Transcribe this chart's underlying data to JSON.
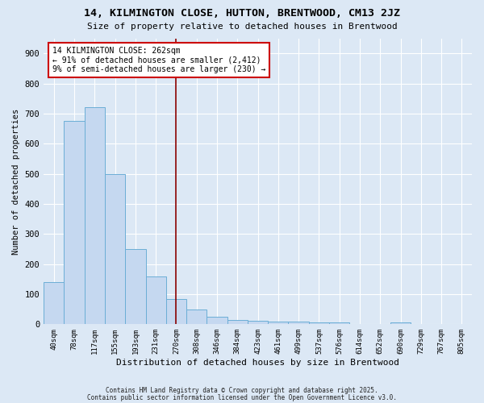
{
  "title": "14, KILMINGTON CLOSE, HUTTON, BRENTWOOD, CM13 2JZ",
  "subtitle": "Size of property relative to detached houses in Brentwood",
  "xlabel": "Distribution of detached houses by size in Brentwood",
  "ylabel": "Number of detached properties",
  "bar_color": "#c5d8f0",
  "bar_edge_color": "#6baed6",
  "background_color": "#dce8f5",
  "grid_color": "#ffffff",
  "bins": [
    "40sqm",
    "78sqm",
    "117sqm",
    "155sqm",
    "193sqm",
    "231sqm",
    "270sqm",
    "308sqm",
    "346sqm",
    "384sqm",
    "423sqm",
    "461sqm",
    "499sqm",
    "537sqm",
    "576sqm",
    "614sqm",
    "652sqm",
    "690sqm",
    "729sqm",
    "767sqm",
    "805sqm"
  ],
  "values": [
    140,
    675,
    720,
    500,
    250,
    160,
    85,
    50,
    25,
    15,
    12,
    8,
    10,
    5,
    5,
    2,
    2,
    5,
    1,
    1,
    1
  ],
  "ylim": [
    0,
    950
  ],
  "yticks": [
    0,
    100,
    200,
    300,
    400,
    500,
    600,
    700,
    800,
    900
  ],
  "red_line_index": 6,
  "annotation_text": "14 KILMINGTON CLOSE: 262sqm\n← 91% of detached houses are smaller (2,412)\n9% of semi-detached houses are larger (230) →",
  "annotation_box_color": "#ffffff",
  "annotation_border_color": "#cc0000",
  "red_line_color": "#880000",
  "footer_line1": "Contains HM Land Registry data © Crown copyright and database right 2025.",
  "footer_line2": "Contains public sector information licensed under the Open Government Licence v3.0."
}
